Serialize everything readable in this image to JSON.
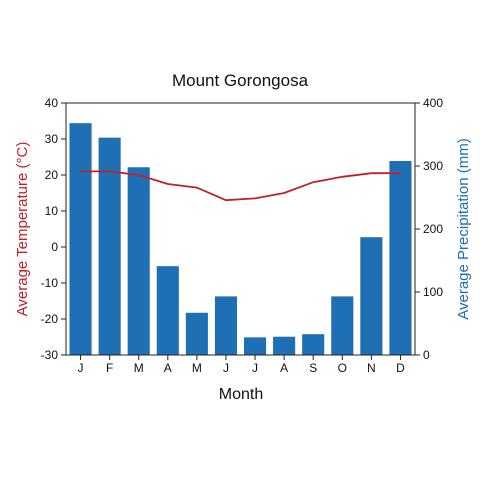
{
  "chart_data": {
    "type": "bar",
    "title": "Mount Gorongosa",
    "xlabel": "Month",
    "ylabel_left": "Average Temperature (°C)",
    "ylabel_right": "Average Precipitation (mm)",
    "categories": [
      "J",
      "F",
      "M",
      "A",
      "M",
      "J",
      "J",
      "A",
      "S",
      "O",
      "N",
      "D"
    ],
    "series": [
      {
        "name": "Average Precipitation (mm)",
        "type": "bar",
        "axis": "right",
        "color": "#1f6fb4",
        "values": [
          368,
          345,
          298,
          141,
          67,
          93,
          28,
          29,
          33,
          93,
          187,
          308
        ]
      },
      {
        "name": "Average Temperature (°C)",
        "type": "line",
        "axis": "left",
        "color": "#c0202a",
        "values": [
          21,
          21,
          20,
          17.5,
          16.5,
          13,
          13.5,
          15,
          18,
          19.5,
          20.5,
          20.5
        ]
      }
    ],
    "ylim_left": [
      -30,
      40
    ],
    "yticks_left": [
      -30,
      -20,
      -10,
      0,
      10,
      20,
      30,
      40
    ],
    "ylim_right": [
      0,
      400
    ],
    "yticks_right": [
      0,
      100,
      200,
      300,
      400
    ],
    "grid": false,
    "legend": "none"
  }
}
